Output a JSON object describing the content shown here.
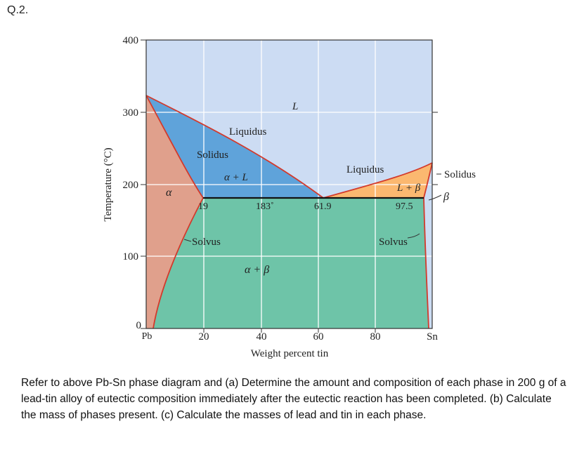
{
  "question_label": "Q.2.",
  "diagram": {
    "y_axis_title": "Temperature (°C)",
    "x_axis_title": "Weight percent tin",
    "y_ticks": [
      "0",
      "100",
      "200",
      "300",
      "400"
    ],
    "x_ticks": [
      "20",
      "40",
      "60",
      "80"
    ],
    "x_end_left": "Pb",
    "x_end_right": "Sn",
    "labels": {
      "L": "L",
      "liquidus_left": "Liquidus",
      "solidus_left": "Solidus",
      "alpha_plus_L": "α + L",
      "alpha": "α",
      "liquidus_right": "Liquidus",
      "L_plus_beta": "L + β",
      "solidus_right": "Solidus",
      "beta": "β",
      "solvus_left": "Solvus",
      "solvus_right": "Solvus",
      "alpha_plus_beta": "α + β",
      "comp_19": "19",
      "eutectic_temp": "183˚",
      "comp_619": "61.9",
      "comp_975": "97.5"
    },
    "colors": {
      "liquid": "#ccdcf3",
      "alpha": "#e0a08c",
      "alpha_plus_L": "#5fa3da",
      "L_plus_beta": "#fbb870",
      "alpha_plus_beta": "#6ec4a8",
      "phase_boundary": "#d33a2c"
    },
    "phase_points": {
      "pb_melting_c": 327,
      "sn_melting_c": 232,
      "eutectic_temp_c": 183,
      "eutectic_comp_wt_sn": 61.9,
      "alpha_max_solubility_wt_sn": 19,
      "beta_max_solubility_wt_sn": 97.5
    }
  },
  "question_text": "Refer to above Pb-Sn phase diagram and (a) Determine the amount and composition of each phase in 200 g of a lead-tin alloy of eutectic composition immediately after the eutectic reaction has been completed. (b) Calculate the mass of phases present. (c) Calculate the masses of lead and tin in each phase."
}
